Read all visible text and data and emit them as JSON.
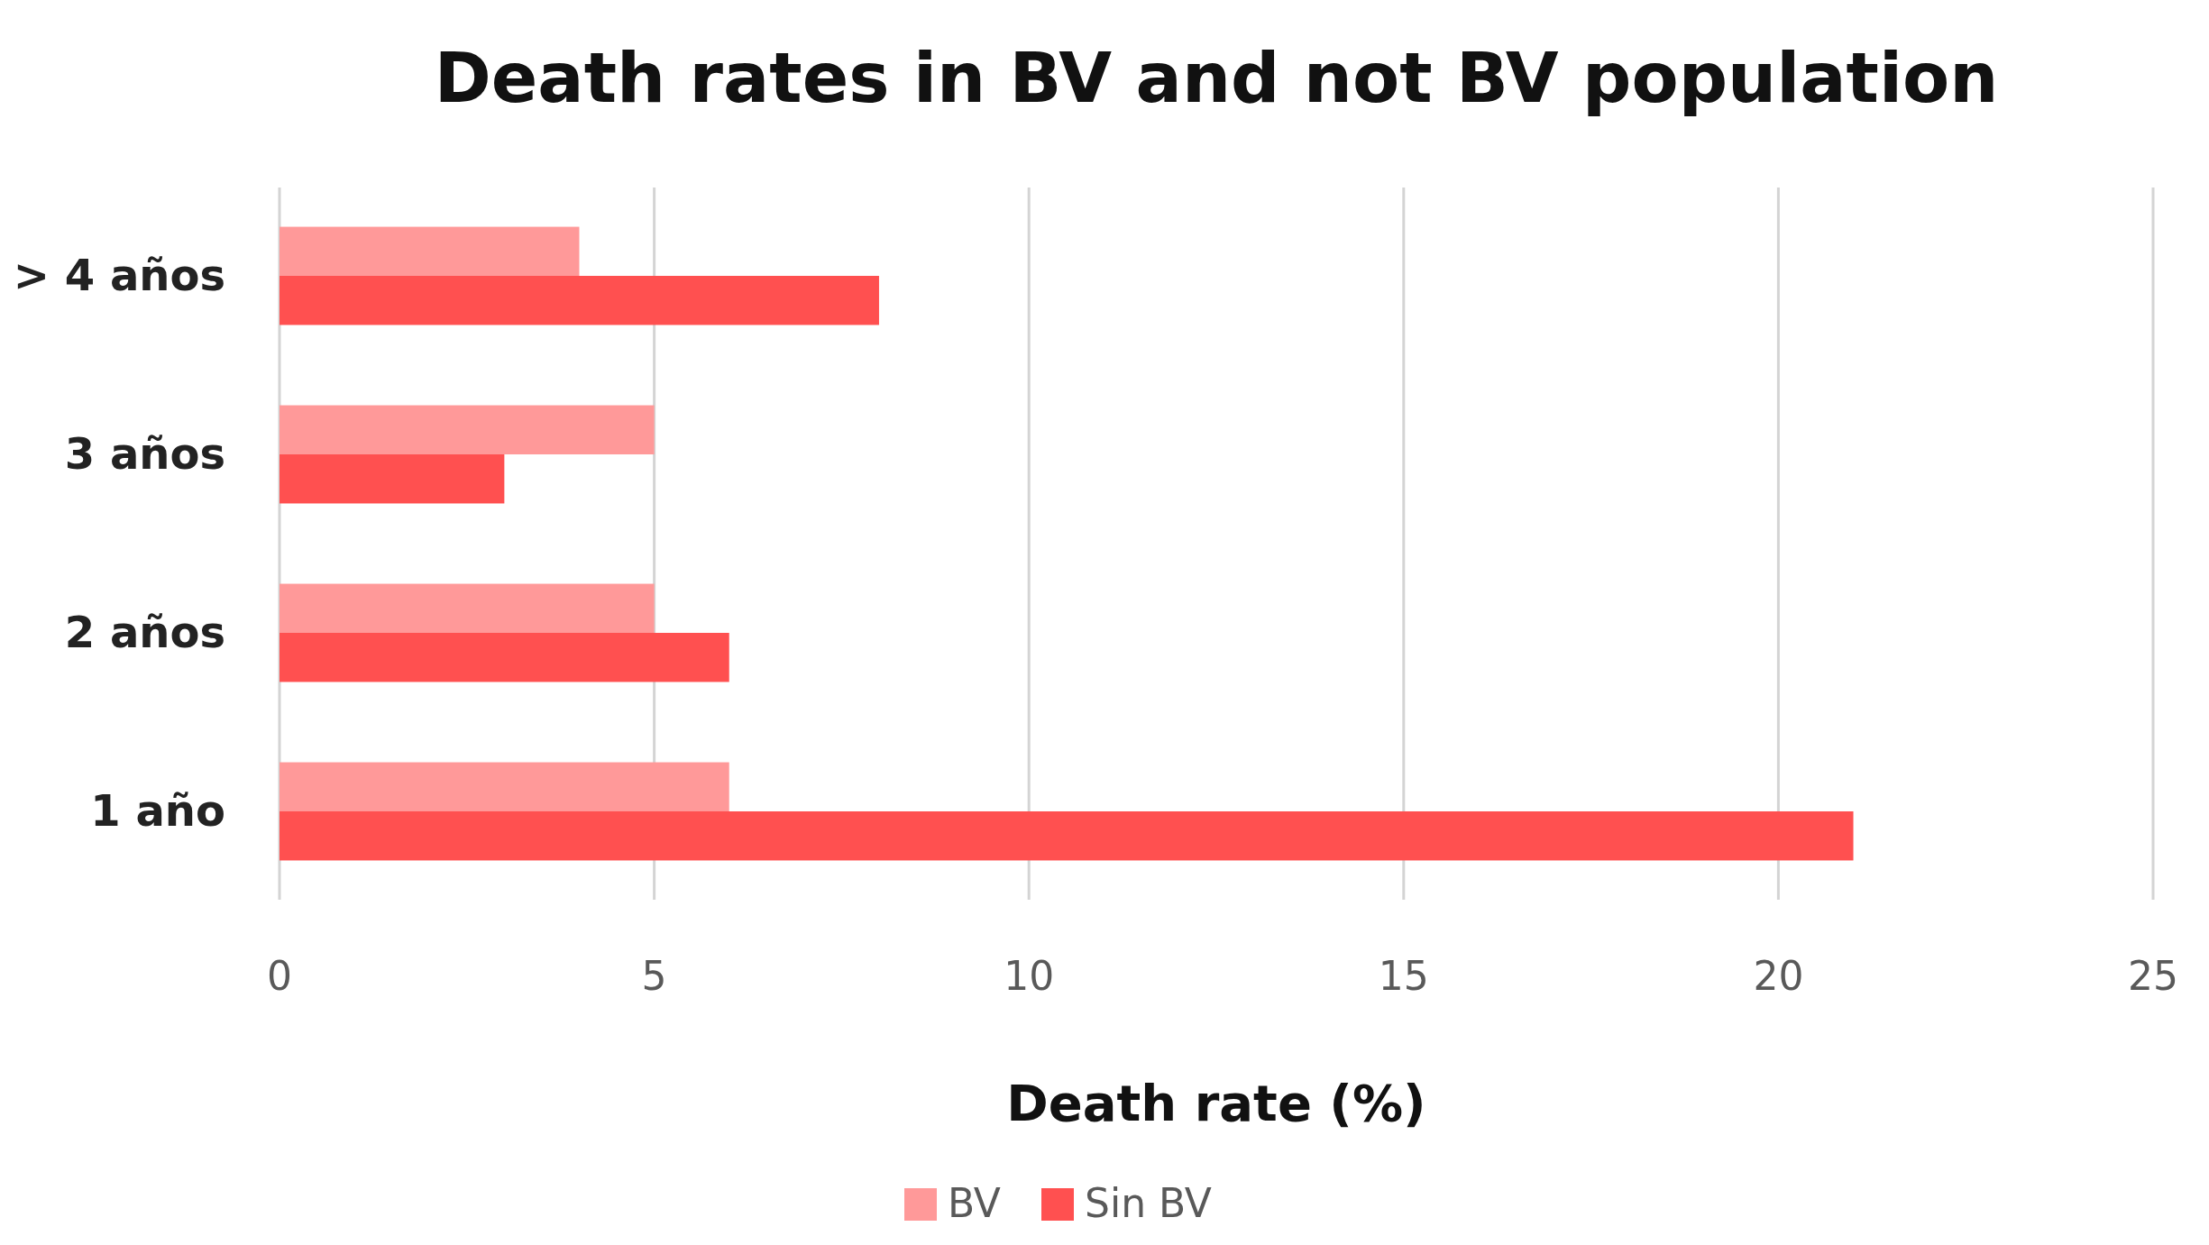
{
  "chart_data": {
    "type": "bar",
    "orientation": "horizontal",
    "title": "Death rates in BV and not BV population",
    "xlabel": "Death rate (%)",
    "categories": [
      "> 4 años",
      "3 años",
      "2 años",
      "1 año"
    ],
    "series": [
      {
        "name": "BV",
        "color": "#ff9999",
        "values": [
          4,
          5,
          5,
          6
        ]
      },
      {
        "name": "Sin BV",
        "color": "#ff5050",
        "values": [
          8,
          3,
          6,
          21
        ]
      }
    ],
    "xlim": [
      0,
      25
    ],
    "xticks": [
      0,
      5,
      10,
      15,
      20,
      25
    ],
    "grid": "x",
    "legend": "bottom"
  }
}
